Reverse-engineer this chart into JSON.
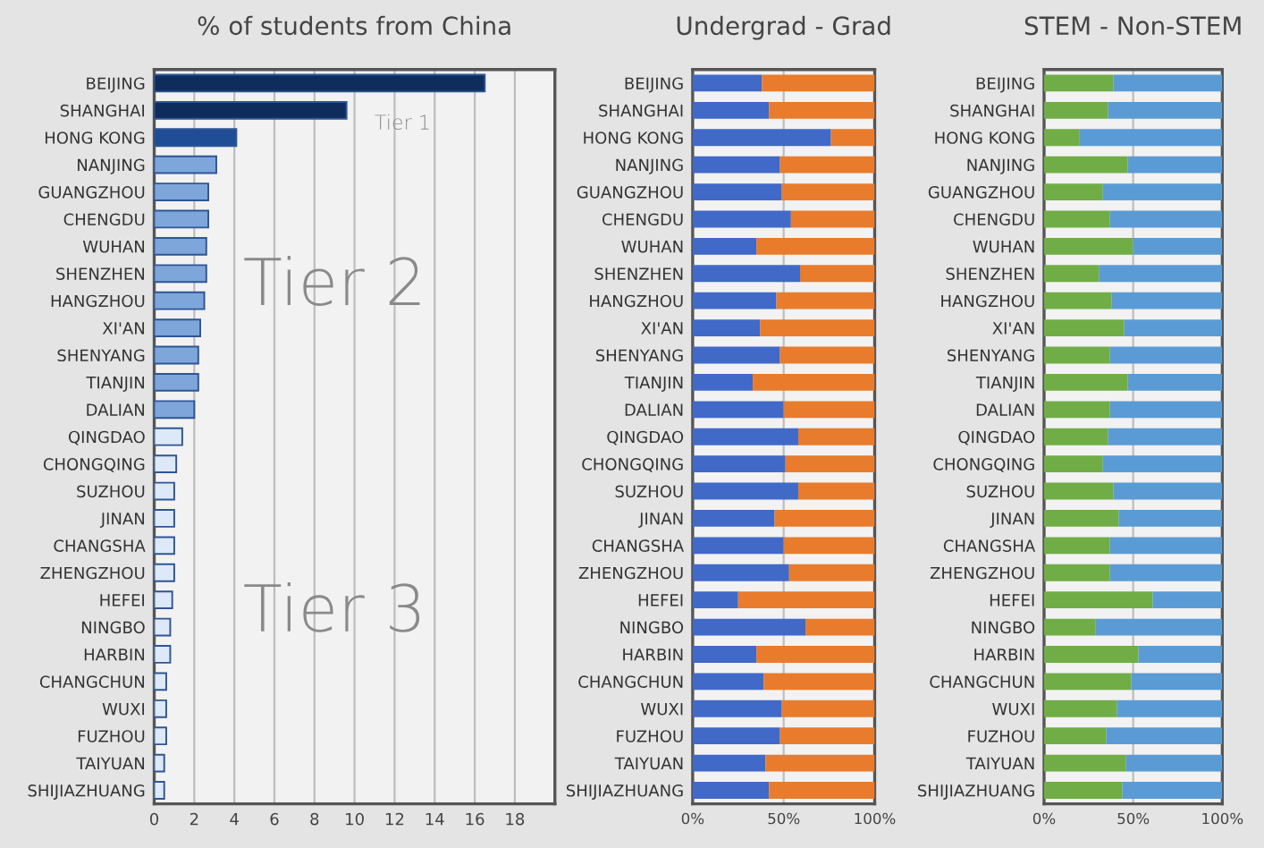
{
  "chart_data": [
    {
      "type": "bar",
      "orientation": "horizontal",
      "title": "% of students from China",
      "categories": [
        "BEIJING",
        "SHANGHAI",
        "HONG KONG",
        "NANJING",
        "GUANGZHOU",
        "CHENGDU",
        "WUHAN",
        "SHENZHEN",
        "HANGZHOU",
        "XI'AN",
        "SHENYANG",
        "TIANJIN",
        "DALIAN",
        "QINGDAO",
        "CHONGQING",
        "SUZHOU",
        "JINAN",
        "CHANGSHA",
        "ZHENGZHOU",
        "HEFEI",
        "NINGBO",
        "HARBIN",
        "CHANGCHUN",
        "WUXI",
        "FUZHOU",
        "TAIYUAN",
        "SHIJIAZHUANG"
      ],
      "values": [
        16.5,
        9.6,
        4.1,
        3.1,
        2.7,
        2.7,
        2.6,
        2.6,
        2.5,
        2.3,
        2.2,
        2.2,
        2.0,
        1.4,
        1.1,
        1.0,
        1.0,
        1.0,
        1.0,
        0.9,
        0.8,
        0.8,
        0.6,
        0.6,
        0.6,
        0.5,
        0.5
      ],
      "colors": [
        "#0f2d5c",
        "#0f2d5c",
        "#1f4e96",
        "#7ea6da",
        "#7ea6da",
        "#7ea6da",
        "#7ea6da",
        "#7ea6da",
        "#7ea6da",
        "#7ea6da",
        "#7ea6da",
        "#7ea6da",
        "#7ea6da",
        "#dde9f8",
        "#dde9f8",
        "#dde9f8",
        "#dde9f8",
        "#dde9f8",
        "#dde9f8",
        "#dde9f8",
        "#dde9f8",
        "#dde9f8",
        "#dde9f8",
        "#dde9f8",
        "#dde9f8",
        "#dde9f8",
        "#dde9f8"
      ],
      "xlim": [
        0,
        20
      ],
      "xticks": [
        0,
        2,
        4,
        6,
        8,
        10,
        12,
        14,
        16,
        18
      ],
      "grid": "x",
      "annotations": [
        "Tier 1",
        "Tier 2",
        "Tier 3"
      ]
    },
    {
      "type": "bar",
      "orientation": "horizontal",
      "stacked": true,
      "title": "Undergrad - Grad",
      "categories": [
        "BEIJING",
        "SHANGHAI",
        "HONG KONG",
        "NANJING",
        "GUANGZHOU",
        "CHENGDU",
        "WUHAN",
        "SHENZHEN",
        "HANGZHOU",
        "XI'AN",
        "SHENYANG",
        "TIANJIN",
        "DALIAN",
        "QINGDAO",
        "CHONGQING",
        "SUZHOU",
        "JINAN",
        "CHANGSHA",
        "ZHENGZHOU",
        "HEFEI",
        "NINGBO",
        "HARBIN",
        "CHANGCHUN",
        "WUXI",
        "FUZHOU",
        "TAIYUAN",
        "SHIJIAZHUANG"
      ],
      "series": [
        {
          "color": "#4169c8",
          "values": [
            38,
            42,
            76,
            48,
            49,
            54,
            35,
            59,
            46,
            37,
            48,
            33,
            50,
            58,
            51,
            58,
            45,
            50,
            53,
            25,
            62,
            35,
            39,
            49,
            48,
            40,
            42
          ]
        },
        {
          "color": "#e87c2c",
          "values": [
            62,
            58,
            24,
            52,
            51,
            46,
            65,
            41,
            54,
            63,
            52,
            67,
            50,
            42,
            49,
            42,
            55,
            50,
            47,
            75,
            38,
            65,
            61,
            51,
            52,
            60,
            58
          ]
        }
      ],
      "xlim": [
        0,
        100
      ],
      "xticks": [
        {
          "value": 0,
          "label": "0%"
        },
        {
          "value": 50,
          "label": "50%"
        },
        {
          "value": 100,
          "label": "100%"
        }
      ],
      "grid": "x"
    },
    {
      "type": "bar",
      "orientation": "horizontal",
      "stacked": true,
      "title": "STEM - Non-STEM",
      "categories": [
        "BEIJING",
        "SHANGHAI",
        "HONG KONG",
        "NANJING",
        "GUANGZHOU",
        "CHENGDU",
        "WUHAN",
        "SHENZHEN",
        "HANGZHOU",
        "XI'AN",
        "SHENYANG",
        "TIANJIN",
        "DALIAN",
        "QINGDAO",
        "CHONGQING",
        "SUZHOU",
        "JINAN",
        "CHANGSHA",
        "ZHENGZHOU",
        "HEFEI",
        "NINGBO",
        "HARBIN",
        "CHANGCHUN",
        "WUXI",
        "FUZHOU",
        "TAIYUAN",
        "SHIJIAZHUANG"
      ],
      "series": [
        {
          "color": "#70ad47",
          "values": [
            39,
            36,
            20,
            47,
            33,
            37,
            50,
            31,
            38,
            45,
            37,
            47,
            37,
            36,
            33,
            39,
            42,
            37,
            37,
            61,
            29,
            53,
            49,
            41,
            35,
            46,
            44
          ]
        },
        {
          "color": "#5b9bd5",
          "values": [
            61,
            64,
            80,
            53,
            67,
            63,
            50,
            69,
            62,
            55,
            63,
            53,
            63,
            64,
            67,
            61,
            58,
            63,
            63,
            39,
            71,
            47,
            51,
            59,
            65,
            54,
            56
          ]
        }
      ],
      "xlim": [
        0,
        100
      ],
      "xticks": [
        {
          "value": 0,
          "label": "0%"
        },
        {
          "value": 50,
          "label": "50%"
        },
        {
          "value": 100,
          "label": "100%"
        }
      ],
      "grid": "x"
    }
  ]
}
